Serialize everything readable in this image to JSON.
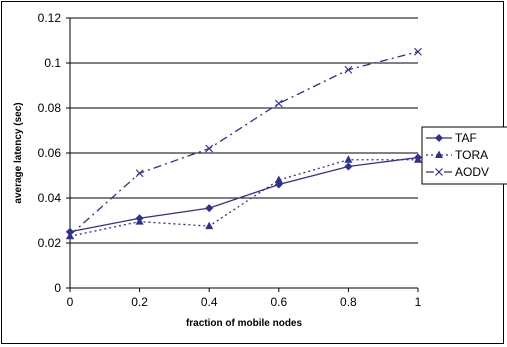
{
  "chart_data": {
    "type": "line",
    "title": "",
    "xlabel": "fraction of mobile nodes",
    "ylabel": "average latency (sec)",
    "x": [
      0,
      0.2,
      0.4,
      0.6,
      0.8,
      1
    ],
    "xlim": [
      0,
      1
    ],
    "ylim": [
      0,
      0.12
    ],
    "x_ticks": [
      "0",
      "0.2",
      "0.4",
      "0.6",
      "0.8",
      "1"
    ],
    "y_ticks": [
      "0",
      "0.02",
      "0.04",
      "0.06",
      "0.08",
      "0.1",
      "0.12"
    ],
    "grid": "horizontal",
    "legend_position": "right",
    "series": [
      {
        "name": "TAF",
        "values": [
          0.025,
          0.031,
          0.0355,
          0.046,
          0.054,
          0.058
        ],
        "color": "#2E3192",
        "marker": "diamond",
        "line_style": "solid"
      },
      {
        "name": "TORA",
        "values": [
          0.023,
          0.0295,
          0.0275,
          0.048,
          0.057,
          0.057
        ],
        "color": "#2E3192",
        "marker": "triangle",
        "line_style": "dotted"
      },
      {
        "name": "AODV",
        "values": [
          0.0235,
          0.051,
          0.062,
          0.082,
          0.097,
          0.105
        ],
        "color": "#2E3192",
        "marker": "x",
        "line_style": "dash-dot"
      }
    ]
  }
}
